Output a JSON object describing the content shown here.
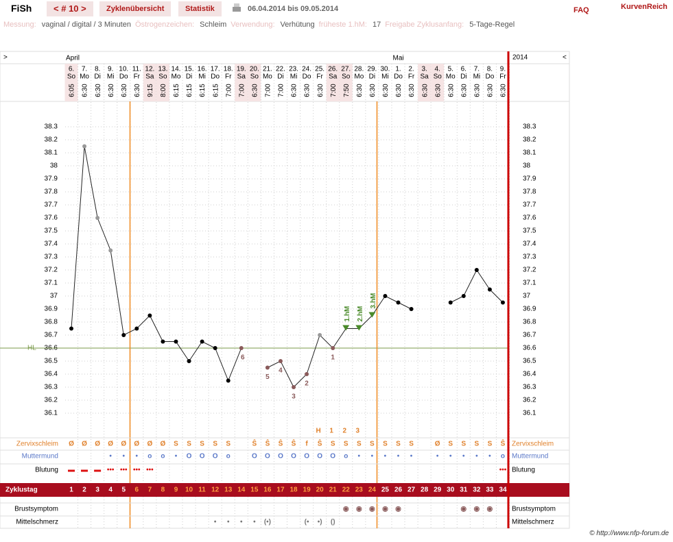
{
  "header": {
    "logo": "FiSh",
    "cycle_nav": "< # 10 >",
    "tabs": [
      "Zyklenübersicht",
      "Statistik"
    ],
    "date_range": "06.04.2014 bis 09.05.2014",
    "faq": "FAQ",
    "brand": "KurvenReich"
  },
  "info": [
    {
      "label": "Messung:",
      "value": "vaginal / digital / 3 Minuten"
    },
    {
      "label": "Östrogenzeichen:",
      "value": "Schleim"
    },
    {
      "label": "Verwendung:",
      "value": "Verhütung"
    },
    {
      "label": "früheste 1.hM:",
      "value": "17"
    },
    {
      "label": "Freigabe Zyklusanfang:",
      "value": "5-Tage-Regel"
    }
  ],
  "chart_data": {
    "type": "line",
    "nav_left": ">",
    "nav_right": "<",
    "year": "2014",
    "months": [
      "April",
      null,
      null,
      null,
      null,
      null,
      null,
      null,
      null,
      null,
      null,
      null,
      null,
      null,
      null,
      null,
      null,
      null,
      null,
      null,
      null,
      null,
      null,
      null,
      null,
      "Mai",
      null,
      null,
      null,
      null,
      null,
      null,
      null,
      null
    ],
    "categories": [
      "6.",
      "7.",
      "8.",
      "9.",
      "10.",
      "11.",
      "12.",
      "13.",
      "14.",
      "15.",
      "16.",
      "17.",
      "18.",
      "19.",
      "20.",
      "21.",
      "22.",
      "23.",
      "24.",
      "25.",
      "26.",
      "27.",
      "28.",
      "29.",
      "30.",
      "1.",
      "2.",
      "3.",
      "4.",
      "5.",
      "6.",
      "7.",
      "8.",
      "9."
    ],
    "weekdays": [
      "So",
      "Mo",
      "Di",
      "Mi",
      "Do",
      "Fr",
      "Sa",
      "So",
      "Mo",
      "Di",
      "Mi",
      "Do",
      "Fr",
      "Sa",
      "So",
      "Mo",
      "Di",
      "Mi",
      "Do",
      "Fr",
      "Sa",
      "So",
      "Mo",
      "Di",
      "Mi",
      "Do",
      "Fr",
      "Sa",
      "So",
      "Mo",
      "Di",
      "Mi",
      "Do",
      "Fr"
    ],
    "times": [
      "6:05",
      "6:30",
      "6:30",
      "6:30",
      "6:30",
      "6:30",
      "9:15",
      "8:00",
      "6:15",
      "6:15",
      "6:15",
      "6:15",
      "7:00",
      "7:00",
      "6:30",
      "7:00",
      "7:00",
      "6:30",
      "6:30",
      "6:30",
      "7:00",
      "7:50",
      "6:30",
      "6:30",
      "6:30",
      "6:30",
      "6:30",
      "6:30",
      "6:30",
      "6:30",
      "6:30",
      "6:30",
      "6:30",
      "6:30"
    ],
    "values": [
      36.75,
      38.15,
      37.6,
      37.35,
      36.7,
      36.75,
      36.85,
      36.65,
      36.65,
      36.5,
      36.65,
      36.6,
      36.35,
      36.6,
      null,
      36.45,
      36.5,
      36.3,
      36.4,
      36.7,
      36.6,
      36.75,
      36.75,
      36.85,
      37.0,
      36.95,
      36.9,
      null,
      null,
      36.95,
      37.0,
      37.2,
      37.05,
      36.95
    ],
    "color": "#222222",
    "marker_colors": [
      "#000",
      "#999",
      "#999",
      "#999",
      "#000",
      "#000",
      "#000",
      "#000",
      "#000",
      "#000",
      "#000",
      "#000",
      "#000",
      "#8a5a5a",
      "#000",
      "#8a5a5a",
      "#8a5a5a",
      "#8a5a5a",
      "#8a5a5a",
      "#999",
      "#8a5a5a",
      "#4a8a2a",
      "#4a8a2a",
      "#4a8a2a",
      "#000",
      "#000",
      "#000",
      "#000",
      "#000",
      "#000",
      "#000",
      "#000",
      "#000",
      "#000"
    ],
    "excluded_labels": [
      null,
      null,
      null,
      null,
      null,
      null,
      null,
      null,
      null,
      null,
      null,
      null,
      null,
      6,
      null,
      5,
      4,
      3,
      2,
      null,
      1,
      null,
      null,
      null,
      null,
      null,
      null,
      null,
      null,
      null,
      null,
      null,
      null,
      null
    ],
    "hm_labels": [
      null,
      null,
      null,
      null,
      null,
      null,
      null,
      null,
      null,
      null,
      null,
      null,
      null,
      null,
      null,
      null,
      null,
      null,
      null,
      null,
      null,
      "1.hM",
      "2.hM",
      "3.hM",
      null,
      null,
      null,
      null,
      null,
      null,
      null,
      null,
      null,
      null
    ],
    "top_labels": [
      null,
      null,
      null,
      null,
      null,
      null,
      null,
      null,
      null,
      null,
      null,
      null,
      null,
      null,
      null,
      null,
      null,
      null,
      null,
      "H",
      "1",
      "2",
      "3",
      null,
      null,
      null,
      null,
      null,
      null,
      null,
      null,
      null,
      null,
      null
    ],
    "ylim": [
      35.95,
      38.5
    ],
    "yticks": [
      36.1,
      36.2,
      36.3,
      36.4,
      36.5,
      36.6,
      36.7,
      36.8,
      36.9,
      37,
      37.1,
      37.2,
      37.3,
      37.4,
      37.5,
      37.6,
      37.7,
      37.8,
      37.9,
      38,
      38.1,
      38.2,
      38.3
    ],
    "hl": {
      "label": "HL",
      "value": 36.6,
      "color": "#7a9a4a"
    },
    "rows": [
      {
        "label": "Zervixschleim",
        "color": "#e0802a",
        "symbols": [
          "Ø",
          "Ø",
          "Ø",
          "Ø",
          "Ø",
          "Ø",
          "Ø",
          "Ø",
          "S",
          "S",
          "S",
          "S",
          "S",
          null,
          "Ŝ",
          "Ŝ",
          "Ŝ",
          "Ŝ",
          "f",
          "Ŝ",
          "S",
          "S",
          "S",
          "S",
          "S",
          "S",
          "S",
          null,
          "Ø",
          "S",
          "S",
          "S",
          "S",
          "Ŝ"
        ]
      },
      {
        "label": "Muttermund",
        "color": "#5a78c8",
        "symbols": [
          null,
          null,
          null,
          "•",
          "•",
          "•",
          "o",
          "o",
          "•",
          "O",
          "O",
          "O",
          "o",
          null,
          "O",
          "O",
          "O",
          "O",
          "O",
          "O",
          "O",
          "o",
          "•",
          "•",
          "•",
          "•",
          "•",
          null,
          "•",
          "•",
          "•",
          "•",
          "•",
          "o"
        ]
      },
      {
        "label": "Blutung",
        "color": "#dd1111",
        "symbols": [
          "▬",
          "▬",
          "▬",
          "•••",
          "•••",
          "•••",
          "•••",
          null,
          null,
          null,
          null,
          null,
          null,
          null,
          null,
          null,
          null,
          null,
          null,
          null,
          null,
          null,
          null,
          null,
          null,
          null,
          null,
          null,
          null,
          null,
          null,
          null,
          null,
          "•••"
        ]
      }
    ],
    "cycle_day": {
      "label": "Zyklustag",
      "values": [
        1,
        2,
        3,
        4,
        5,
        6,
        7,
        8,
        9,
        10,
        11,
        12,
        13,
        14,
        15,
        16,
        17,
        18,
        19,
        20,
        21,
        22,
        23,
        24,
        25,
        26,
        27,
        28,
        29,
        30,
        31,
        32,
        33,
        34
      ]
    },
    "rows2": [
      {
        "label": "Brustsymptom",
        "color": "#8a5a5a",
        "symbols": [
          null,
          null,
          null,
          null,
          null,
          null,
          null,
          null,
          null,
          null,
          null,
          null,
          null,
          null,
          null,
          null,
          null,
          null,
          null,
          null,
          null,
          "◉",
          "◉",
          "◉",
          "◉",
          "◉",
          null,
          null,
          null,
          null,
          "◉",
          "◉",
          "◉",
          null
        ]
      },
      {
        "label": "Mittelschmerz",
        "color": "#777777",
        "symbols": [
          null,
          null,
          null,
          null,
          null,
          null,
          null,
          null,
          null,
          null,
          null,
          "•",
          "•",
          "•",
          "•",
          "(•)",
          null,
          null,
          "(•",
          "•)",
          "()",
          null,
          null,
          null,
          null,
          null,
          null,
          null,
          null,
          null,
          null,
          null,
          null,
          null
        ]
      }
    ]
  },
  "footer": "© http://www.nfp-forum.de"
}
